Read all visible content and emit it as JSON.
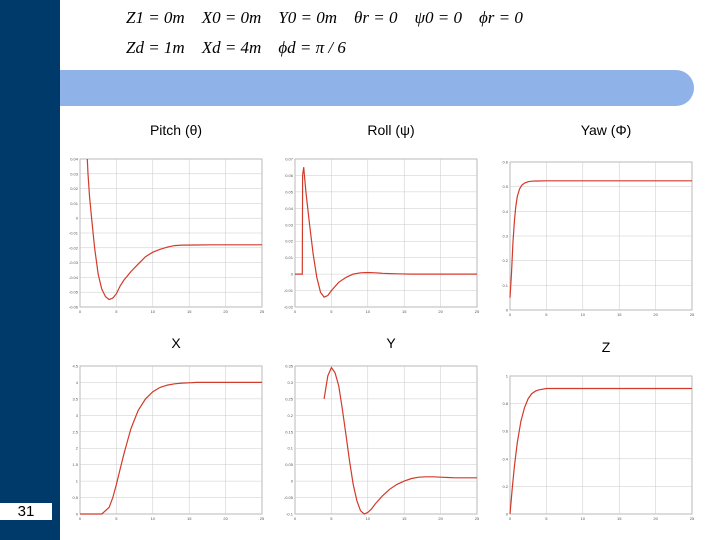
{
  "slide": {
    "number": "31",
    "equations": {
      "line1": "Z1 = 0m    X0 = 0m    Y0 = 0m    θr = 0    ψ0 = 0    ϕr = 0",
      "line2": "Zd = 1m    Xd = 4m    ϕd = π / 6"
    },
    "colors": {
      "side_bar": "#003a6b",
      "header_band": "#8fb3e8",
      "curve": "#d23a2a",
      "grid": "#c9c9c9"
    }
  },
  "chart_data": [
    {
      "type": "line",
      "title": "Pitch (θ)",
      "xlim": [
        0,
        25
      ],
      "ylim": [
        -0.06,
        0.04
      ],
      "xticks": [
        "0",
        "5",
        "10",
        "15",
        "20",
        "25"
      ],
      "yticks": [
        "0.04",
        "0.03",
        "0.02",
        "0.01",
        "0",
        "-0.01",
        "-0.02",
        "-0.03",
        "-0.04",
        "-0.05",
        "-0.06"
      ],
      "series": [
        {
          "x": [
            1.0,
            1.1,
            1.3,
            1.6,
            2.0,
            2.5,
            3.0,
            3.5,
            4.0,
            4.5,
            5.0,
            5.5,
            6.0,
            7.0,
            8.0,
            9.0,
            10.0,
            11.0,
            12.0,
            13.0,
            14.0,
            16.0,
            18.0,
            20.0,
            25.0
          ],
          "y": [
            0.04,
            0.03,
            0.015,
            0.0,
            -0.02,
            -0.038,
            -0.048,
            -0.053,
            -0.055,
            -0.054,
            -0.051,
            -0.046,
            -0.042,
            -0.036,
            -0.031,
            -0.026,
            -0.023,
            -0.021,
            -0.0195,
            -0.0185,
            -0.0182,
            -0.0181,
            -0.018,
            -0.018,
            -0.018
          ]
        }
      ]
    },
    {
      "type": "line",
      "title": "Roll (ψ)",
      "xlim": [
        0,
        25
      ],
      "ylim": [
        -0.02,
        0.07
      ],
      "xticks": [
        "0",
        "5",
        "10",
        "15",
        "20",
        "25"
      ],
      "yticks": [
        "0.07",
        "0.06",
        "0.05",
        "0.04",
        "0.03",
        "0.02",
        "0.01",
        "0",
        "-0.01",
        "-0.02"
      ],
      "series": [
        {
          "x": [
            0,
            1.0,
            1.05,
            1.2,
            1.5,
            2.0,
            2.5,
            3.0,
            3.5,
            4.0,
            4.5,
            5.0,
            6.0,
            7.0,
            8.0,
            9.0,
            10.0,
            11.0,
            12.0,
            13.0,
            14.0,
            16.0,
            18.0,
            20.0,
            25.0
          ],
          "y": [
            0,
            0,
            0.06,
            0.065,
            0.05,
            0.03,
            0.012,
            -0.002,
            -0.011,
            -0.014,
            -0.013,
            -0.01,
            -0.005,
            -0.002,
            0.0,
            0.0008,
            0.001,
            0.0008,
            0.0005,
            0.0003,
            0.0002,
            0,
            0,
            0,
            0
          ]
        }
      ]
    },
    {
      "type": "line",
      "title": "Yaw (Φ)",
      "xlim": [
        0,
        25
      ],
      "ylim": [
        0,
        0.6
      ],
      "xticks": [
        "0",
        "5",
        "10",
        "15",
        "20",
        "25"
      ],
      "yticks": [
        "0.6",
        "0.5",
        "0.4",
        "0.3",
        "0.2",
        "0.1",
        "0"
      ],
      "series": [
        {
          "x": [
            0,
            0.2,
            0.4,
            0.6,
            0.8,
            1.0,
            1.3,
            1.6,
            2.0,
            2.5,
            3.0,
            3.5,
            4.0,
            5.0,
            6.0,
            8.0,
            10.0,
            15.0,
            20.0,
            25.0
          ],
          "y": [
            0.05,
            0.15,
            0.27,
            0.36,
            0.42,
            0.46,
            0.49,
            0.505,
            0.515,
            0.52,
            0.522,
            0.523,
            0.523,
            0.5236,
            0.5236,
            0.5236,
            0.5236,
            0.5236,
            0.5236,
            0.5236
          ]
        }
      ]
    },
    {
      "type": "line",
      "title": "X",
      "xlim": [
        0,
        25
      ],
      "ylim": [
        0,
        4.5
      ],
      "xticks": [
        "0",
        "5",
        "10",
        "15",
        "20",
        "25"
      ],
      "yticks": [
        "4.5",
        "4",
        "3.5",
        "3",
        "2.5",
        "2",
        "1.5",
        "1",
        "0.5",
        "0"
      ],
      "series": [
        {
          "x": [
            0,
            1.0,
            2.0,
            3.0,
            4.0,
            4.5,
            5.0,
            5.5,
            6.0,
            6.5,
            7.0,
            8.0,
            9.0,
            10.0,
            11.0,
            12.0,
            13.0,
            14.0,
            15.0,
            16.0,
            18.0,
            20.0,
            25.0
          ],
          "y": [
            0,
            0,
            0,
            0,
            0.2,
            0.5,
            0.9,
            1.35,
            1.8,
            2.2,
            2.6,
            3.15,
            3.5,
            3.72,
            3.85,
            3.92,
            3.96,
            3.98,
            3.99,
            4.0,
            4.0,
            4.0,
            4.0
          ]
        }
      ]
    },
    {
      "type": "line",
      "title": "Y",
      "xlim": [
        0,
        25
      ],
      "ylim": [
        -0.1,
        0.35
      ],
      "xticks": [
        "0",
        "5",
        "10",
        "15",
        "20",
        "25"
      ],
      "yticks": [
        "0.35",
        "0.3",
        "0.25",
        "0.2",
        "0.15",
        "0.1",
        "0.05",
        "0",
        "-0.05",
        "-0.1"
      ],
      "series": [
        {
          "x": [
            4.0,
            4.5,
            5.0,
            5.5,
            6.0,
            6.5,
            7.0,
            7.5,
            8.0,
            8.5,
            9.0,
            9.5,
            10.0,
            10.5,
            11.0,
            12.0,
            13.0,
            14.0,
            15.0,
            16.0,
            17.0,
            18.0,
            19.0,
            20.0,
            21.0,
            22.0,
            25.0
          ],
          "y": [
            0.25,
            0.32,
            0.345,
            0.33,
            0.29,
            0.22,
            0.14,
            0.06,
            -0.01,
            -0.06,
            -0.09,
            -0.1,
            -0.095,
            -0.085,
            -0.07,
            -0.045,
            -0.025,
            -0.01,
            0.0,
            0.008,
            0.012,
            0.013,
            0.013,
            0.012,
            0.011,
            0.01,
            0.01
          ]
        }
      ]
    },
    {
      "type": "line",
      "title": "Z",
      "xlim": [
        0,
        25
      ],
      "ylim": [
        0,
        1.1
      ],
      "xticks": [
        "0",
        "5",
        "10",
        "15",
        "20",
        "25"
      ],
      "yticks": [
        "1",
        "0.8",
        "0.6",
        "0.4",
        "0.2",
        "0"
      ],
      "series": [
        {
          "x": [
            0,
            0.3,
            0.6,
            1.0,
            1.5,
            2.0,
            2.5,
            3.0,
            3.5,
            4.0,
            5.0,
            6.0,
            8.0,
            10.0,
            15.0,
            20.0,
            25.0
          ],
          "y": [
            0,
            0.2,
            0.38,
            0.57,
            0.74,
            0.85,
            0.92,
            0.96,
            0.98,
            0.99,
            1.0,
            1.0,
            1.0,
            1.0,
            1.0,
            1.0,
            1.0
          ]
        }
      ]
    }
  ]
}
